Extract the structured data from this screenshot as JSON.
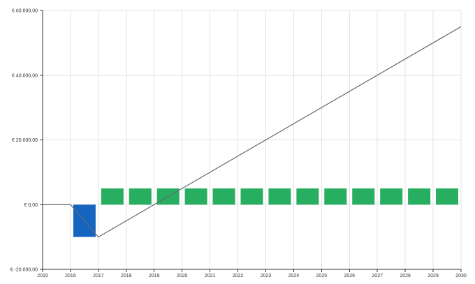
{
  "chart_data": {
    "type": "bar",
    "x": [
      2016,
      2017,
      2018,
      2019,
      2020,
      2021,
      2022,
      2023,
      2024,
      2025,
      2026,
      2027,
      2028,
      2029,
      2030
    ],
    "xlim": [
      2015,
      2030
    ],
    "x_ticks": [
      2015,
      2016,
      2017,
      2018,
      2019,
      2020,
      2021,
      2022,
      2023,
      2024,
      2025,
      2026,
      2027,
      2028,
      2029,
      2030
    ],
    "ylim": [
      -20000,
      60000
    ],
    "y_ticks": [
      -20000,
      0,
      20000,
      40000,
      60000
    ],
    "y_tick_labels": [
      "€ -20.000,00",
      "€ 0,00",
      "€ 20.000,00",
      "€ 40.000,00",
      "€ 60.000,00"
    ],
    "title": "",
    "xlabel": "",
    "ylabel": "",
    "grid": true,
    "series": [
      {
        "type": "bar",
        "color": "#1565c0",
        "values": [
          0,
          -10000,
          0,
          0,
          0,
          0,
          0,
          0,
          0,
          0,
          0,
          0,
          0,
          0,
          0
        ]
      },
      {
        "type": "bar",
        "color": "#27ae60",
        "values": [
          0,
          0,
          5000,
          5000,
          5000,
          5000,
          5000,
          5000,
          5000,
          5000,
          5000,
          5000,
          5000,
          5000,
          5000
        ]
      },
      {
        "type": "line",
        "color": "#5f6b73",
        "points": [
          [
            2015,
            0
          ],
          [
            2016,
            0
          ],
          [
            2017,
            -10000
          ],
          [
            2030,
            55000
          ]
        ]
      }
    ]
  }
}
